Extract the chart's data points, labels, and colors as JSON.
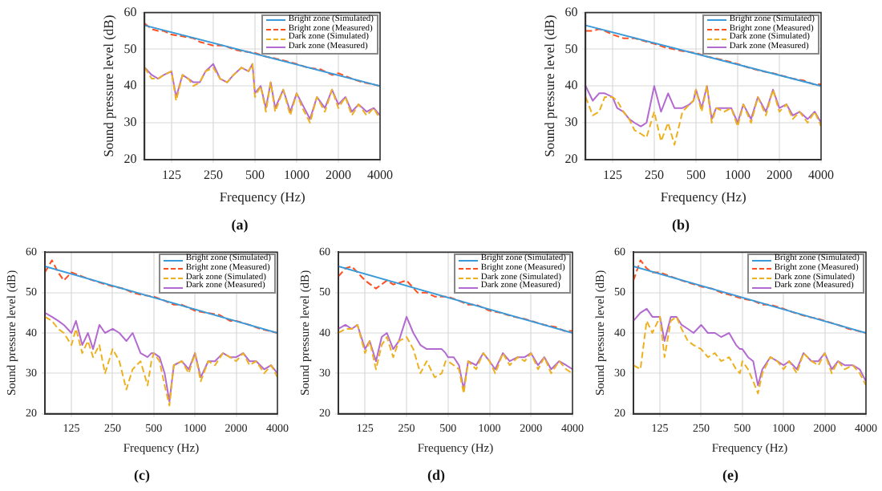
{
  "chart_data": [
    {
      "type": "line",
      "title": "(a)",
      "xlabel": "Frequency (Hz)",
      "ylabel": "Sound pressure level (dB)",
      "log": "x",
      "xlim": [
        80,
        4000
      ],
      "xticks": [
        125,
        250,
        500,
        1000,
        2000,
        4000
      ],
      "ylim": [
        20,
        60
      ],
      "yticks": [
        20,
        30,
        40,
        50,
        60
      ],
      "grid": true,
      "legend": "top right",
      "x": [
        80,
        90,
        100,
        110,
        125,
        135,
        150,
        165,
        180,
        200,
        220,
        250,
        280,
        315,
        350,
        400,
        450,
        480,
        500,
        550,
        600,
        650,
        700,
        800,
        900,
        1000,
        1100,
        1250,
        1400,
        1600,
        1800,
        2000,
        2250,
        2500,
        2800,
        3200,
        3600,
        4000
      ],
      "series": [
        {
          "name": "Bright zone (Simulated)",
          "color": "#3a9ad9",
          "line_style": "solid",
          "x": [
            80,
            4000
          ],
          "values": [
            56.5,
            40
          ]
        },
        {
          "name": "Bright zone (Measured)",
          "color": "#ff4f1f",
          "line_style": "dashed",
          "x": [
            80,
            90,
            100,
            110,
            125,
            150,
            180,
            200,
            250,
            300,
            350,
            400,
            500,
            600,
            700,
            800,
            1000,
            1200,
            1500,
            1800,
            2000,
            2500,
            3000,
            3500,
            4000
          ],
          "values": [
            57,
            55.5,
            55,
            55,
            54,
            53.5,
            53,
            52,
            51,
            51,
            50,
            49.5,
            49,
            48,
            47.5,
            47,
            46,
            45,
            44.5,
            43,
            43.5,
            42,
            41,
            40.5,
            40
          ]
        },
        {
          "name": "Dark zone (Simulated)",
          "color": "#edb120",
          "line_style": "dashed",
          "values": [
            45,
            42,
            42,
            43,
            44,
            36,
            43,
            42,
            40,
            41,
            44,
            45,
            42,
            41,
            43,
            45,
            44,
            46,
            37,
            40,
            33,
            41,
            33,
            39,
            32,
            38,
            34,
            30,
            37,
            33,
            39,
            34,
            37,
            32,
            35,
            32,
            34,
            31
          ]
        },
        {
          "name": "Dark zone (Measured)",
          "color": "#b36ad0",
          "line_style": "solid",
          "values": [
            45,
            43,
            42,
            43,
            44,
            37,
            43,
            42,
            41,
            41,
            44,
            46,
            42,
            41,
            43,
            45,
            44,
            46,
            38,
            40,
            34,
            41,
            34,
            39,
            33,
            38,
            35,
            31,
            37,
            34,
            39,
            35,
            37,
            33,
            35,
            33,
            34,
            32
          ]
        }
      ]
    },
    {
      "type": "line",
      "title": "(b)",
      "xlabel": "Frequency (Hz)",
      "ylabel": "Sound pressure level (dB)",
      "log": "x",
      "xlim": [
        80,
        4000
      ],
      "xticks": [
        125,
        250,
        500,
        1000,
        2000,
        4000
      ],
      "ylim": [
        20,
        60
      ],
      "yticks": [
        20,
        30,
        40,
        50,
        60
      ],
      "grid": true,
      "legend": "top right",
      "x": [
        80,
        90,
        100,
        110,
        125,
        135,
        150,
        165,
        180,
        200,
        220,
        250,
        280,
        315,
        350,
        400,
        450,
        480,
        500,
        550,
        600,
        650,
        700,
        800,
        900,
        1000,
        1100,
        1250,
        1400,
        1600,
        1800,
        2000,
        2250,
        2500,
        2800,
        3200,
        3600,
        4000
      ],
      "series": [
        {
          "name": "Bright zone (Simulated)",
          "color": "#3a9ad9",
          "line_style": "solid",
          "x": [
            80,
            4000
          ],
          "values": [
            56.5,
            40
          ]
        },
        {
          "name": "Bright zone (Measured)",
          "color": "#ff4f1f",
          "line_style": "dashed",
          "x": [
            80,
            90,
            100,
            110,
            125,
            150,
            180,
            200,
            250,
            300,
            350,
            400,
            500,
            600,
            700,
            800,
            1000,
            1200,
            1500,
            1800,
            2000,
            2500,
            3000,
            3500,
            4000
          ],
          "values": [
            55,
            55,
            55.5,
            55,
            54,
            53,
            53,
            52.5,
            51.5,
            50.5,
            50,
            49.5,
            49,
            48,
            47.5,
            47,
            46,
            45,
            44,
            43.5,
            43,
            42,
            41.5,
            40.5,
            40.5
          ]
        },
        {
          "name": "Dark zone (Simulated)",
          "color": "#edb120",
          "line_style": "dashed",
          "values": [
            37,
            32,
            33,
            37,
            37,
            36,
            33,
            31,
            28,
            27,
            26,
            33,
            25,
            30,
            24,
            33,
            35,
            36,
            39,
            33,
            40,
            30,
            34,
            33,
            34,
            29,
            35,
            30,
            37,
            32,
            39,
            33,
            35,
            31,
            33,
            30,
            33,
            29
          ]
        },
        {
          "name": "Dark zone (Measured)",
          "color": "#b36ad0",
          "line_style": "solid",
          "values": [
            40,
            36,
            38,
            38,
            37,
            34,
            33,
            31,
            30,
            29,
            30,
            40,
            33,
            38,
            34,
            34,
            35,
            36,
            39,
            34,
            40,
            31,
            34,
            34,
            34,
            30,
            35,
            31,
            37,
            33,
            39,
            34,
            35,
            32,
            33,
            31,
            33,
            30
          ]
        }
      ]
    },
    {
      "type": "line",
      "title": "(c)",
      "xlabel": "Frequency (Hz)",
      "ylabel": "Sound pressure level (dB)",
      "log": "x",
      "xlim": [
        80,
        4000
      ],
      "xticks": [
        125,
        250,
        500,
        1000,
        2000,
        4000
      ],
      "ylim": [
        20,
        60
      ],
      "yticks": [
        20,
        30,
        40,
        50,
        60
      ],
      "grid": true,
      "legend": "top right",
      "x": [
        80,
        90,
        100,
        110,
        125,
        135,
        150,
        165,
        180,
        200,
        220,
        250,
        280,
        315,
        350,
        400,
        450,
        480,
        500,
        550,
        600,
        650,
        700,
        800,
        900,
        1000,
        1100,
        1250,
        1400,
        1600,
        1800,
        2000,
        2250,
        2500,
        2800,
        3200,
        3600,
        4000
      ],
      "series": [
        {
          "name": "Bright zone (Simulated)",
          "color": "#3a9ad9",
          "line_style": "solid",
          "x": [
            80,
            4000
          ],
          "values": [
            56.5,
            40
          ]
        },
        {
          "name": "Bright zone (Measured)",
          "color": "#ff4f1f",
          "line_style": "dashed",
          "x": [
            80,
            90,
            100,
            110,
            125,
            150,
            180,
            200,
            250,
            300,
            350,
            400,
            500,
            600,
            700,
            800,
            1000,
            1200,
            1500,
            1800,
            2000,
            2500,
            3000,
            3500,
            4000
          ],
          "values": [
            55,
            58,
            55,
            53,
            55,
            54,
            53,
            52.5,
            51.5,
            51,
            50,
            49.5,
            49,
            48,
            47,
            47,
            45.5,
            45,
            44.5,
            43,
            43,
            42,
            41,
            40.5,
            40
          ]
        },
        {
          "name": "Dark zone (Simulated)",
          "color": "#edb120",
          "line_style": "dashed",
          "values": [
            44,
            43,
            41,
            40,
            37,
            41,
            35,
            38,
            34,
            37,
            30,
            36,
            33,
            26,
            31,
            33,
            27,
            33,
            35,
            33,
            27,
            22,
            32,
            33,
            30,
            35,
            28,
            33,
            32,
            35,
            34,
            33,
            35,
            32,
            33,
            30,
            32,
            29
          ]
        },
        {
          "name": "Dark zone (Measured)",
          "color": "#b36ad0",
          "line_style": "solid",
          "values": [
            45,
            44,
            43,
            42,
            40,
            43,
            37,
            40,
            36,
            42,
            40,
            41,
            40,
            38,
            40,
            35,
            34,
            35,
            35,
            34,
            30,
            23,
            32,
            33,
            31,
            35,
            29,
            33,
            33,
            35,
            34,
            34,
            35,
            33,
            33,
            31,
            32,
            30
          ]
        }
      ]
    },
    {
      "type": "line",
      "title": "(d)",
      "xlabel": "Frequency (Hz)",
      "ylabel": "Sound pressure level (dB)",
      "log": "x",
      "xlim": [
        80,
        4000
      ],
      "xticks": [
        125,
        250,
        500,
        1000,
        2000,
        4000
      ],
      "ylim": [
        20,
        60
      ],
      "yticks": [
        20,
        30,
        40,
        50,
        60
      ],
      "grid": true,
      "legend": "top right",
      "x": [
        80,
        90,
        100,
        110,
        125,
        135,
        150,
        165,
        180,
        200,
        220,
        250,
        280,
        315,
        350,
        400,
        450,
        480,
        500,
        550,
        600,
        650,
        700,
        800,
        900,
        1000,
        1100,
        1250,
        1400,
        1600,
        1800,
        2000,
        2250,
        2500,
        2800,
        3200,
        3600,
        4000
      ],
      "series": [
        {
          "name": "Bright zone (Simulated)",
          "color": "#3a9ad9",
          "line_style": "solid",
          "x": [
            80,
            4000
          ],
          "values": [
            56.5,
            40
          ]
        },
        {
          "name": "Bright zone (Measured)",
          "color": "#ff4f1f",
          "line_style": "dashed",
          "x": [
            80,
            90,
            100,
            110,
            125,
            150,
            180,
            200,
            250,
            300,
            350,
            400,
            500,
            600,
            700,
            800,
            1000,
            1200,
            1500,
            1800,
            2000,
            2500,
            3000,
            3500,
            4000
          ],
          "values": [
            54,
            56,
            56.5,
            55,
            53,
            51,
            53,
            52,
            53,
            50,
            50,
            49,
            49,
            48,
            47,
            47,
            45.5,
            45,
            44,
            43.5,
            43,
            42,
            41.5,
            40.5,
            40.5
          ]
        },
        {
          "name": "Dark zone (Simulated)",
          "color": "#edb120",
          "line_style": "dashed",
          "values": [
            40,
            41,
            41,
            42,
            35,
            38,
            31,
            37,
            39,
            34,
            38,
            39,
            36,
            30,
            33,
            29,
            30,
            33,
            33,
            32,
            31,
            25,
            33,
            31,
            35,
            33,
            30,
            35,
            32,
            34,
            33,
            35,
            31,
            34,
            30,
            33,
            31,
            30
          ]
        },
        {
          "name": "Dark zone (Measured)",
          "color": "#b36ad0",
          "line_style": "solid",
          "values": [
            41,
            42,
            41,
            42,
            36,
            38,
            33,
            39,
            40,
            36,
            38,
            44,
            40,
            37,
            36,
            36,
            36,
            35,
            34,
            34,
            32,
            26,
            33,
            32,
            35,
            33,
            31,
            35,
            33,
            34,
            34,
            35,
            32,
            34,
            31,
            33,
            32,
            31
          ]
        }
      ]
    },
    {
      "type": "line",
      "title": "(e)",
      "xlabel": "Frequency (Hz)",
      "ylabel": "Sound pressure level (dB)",
      "log": "x",
      "xlim": [
        80,
        4000
      ],
      "xticks": [
        125,
        250,
        500,
        1000,
        2000,
        4000
      ],
      "ylim": [
        20,
        60
      ],
      "yticks": [
        20,
        30,
        40,
        50,
        60
      ],
      "grid": true,
      "legend": "top right",
      "x": [
        80,
        90,
        100,
        110,
        125,
        135,
        150,
        165,
        180,
        200,
        220,
        250,
        280,
        315,
        350,
        400,
        450,
        480,
        500,
        550,
        600,
        650,
        700,
        800,
        900,
        1000,
        1100,
        1250,
        1400,
        1600,
        1800,
        2000,
        2250,
        2500,
        2800,
        3200,
        3600,
        4000
      ],
      "series": [
        {
          "name": "Bright zone (Simulated)",
          "color": "#3a9ad9",
          "line_style": "solid",
          "x": [
            80,
            4000
          ],
          "values": [
            56.5,
            40
          ]
        },
        {
          "name": "Bright zone (Measured)",
          "color": "#ff4f1f",
          "line_style": "dashed",
          "x": [
            80,
            90,
            100,
            110,
            125,
            150,
            180,
            200,
            250,
            300,
            350,
            400,
            500,
            600,
            700,
            800,
            1000,
            1200,
            1500,
            1800,
            2000,
            2500,
            3000,
            3500,
            4000
          ],
          "values": [
            53,
            58,
            56,
            55,
            55,
            54,
            53,
            52.5,
            51.5,
            51,
            50,
            49.5,
            48.5,
            48,
            47,
            47,
            46,
            45,
            44,
            43.5,
            43,
            42,
            41,
            40.5,
            40
          ]
        },
        {
          "name": "Dark zone (Simulated)",
          "color": "#edb120",
          "line_style": "dashed",
          "values": [
            32,
            31,
            43,
            40,
            44,
            34,
            43,
            44,
            41,
            38,
            37,
            36,
            34,
            35,
            33,
            34,
            31,
            30,
            33,
            31,
            28,
            25,
            30,
            34,
            33,
            31,
            33,
            30,
            35,
            33,
            32,
            35,
            30,
            33,
            31,
            32,
            30,
            27
          ]
        },
        {
          "name": "Dark zone (Measured)",
          "color": "#b36ad0",
          "line_style": "solid",
          "values": [
            43,
            45,
            46,
            44,
            44,
            38,
            44,
            44,
            42,
            41,
            40,
            42,
            40,
            40,
            39,
            40,
            37,
            36,
            36,
            34,
            33,
            27,
            31,
            34,
            33,
            32,
            33,
            31,
            35,
            33,
            33,
            35,
            31,
            33,
            32,
            32,
            31,
            28
          ]
        }
      ]
    }
  ]
}
